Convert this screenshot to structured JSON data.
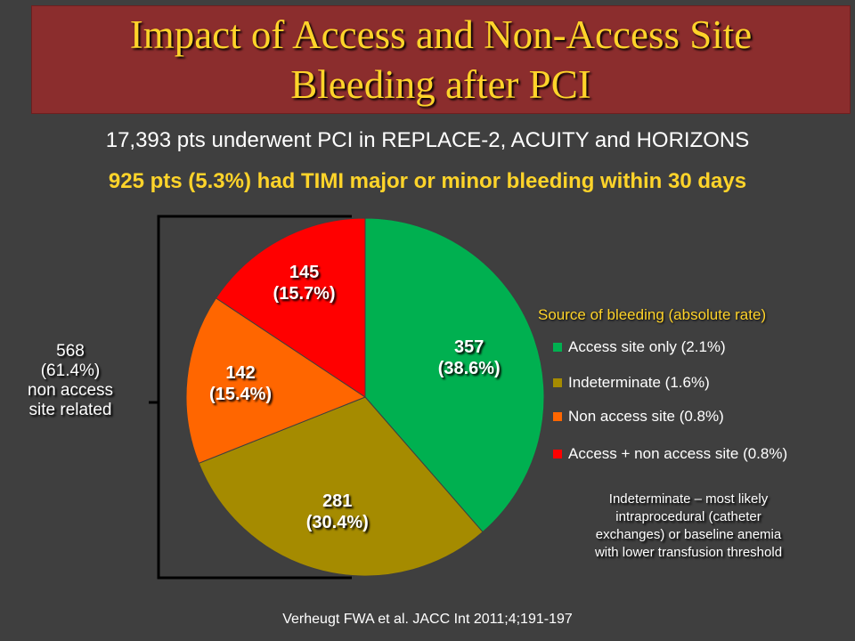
{
  "title": {
    "line1": "Impact of Access and Non-Access Site",
    "line2": "Bleeding after PCI"
  },
  "subtitle": "17,393 pts underwent PCI in REPLACE-2, ACUITY and HORIZONS",
  "highlight": "925 pts (5.3%) had TIMI major or minor bleeding within 30 days",
  "brace_label": [
    "568",
    "(61.4%)",
    "non access",
    "site related"
  ],
  "legend_title": "Source of bleeding (absolute rate)",
  "note": [
    "Indeterminate – most likely",
    "intraprocedural (catheter",
    "exchanges) or baseline anemia",
    "with lower transfusion threshold"
  ],
  "citation": "Verheugt FWA et al. JACC Int 2011;4;191-197",
  "colors": {
    "background": "#3f3f3f",
    "title_bar": "#8b2d2d",
    "title_text": "#ffd42a"
  },
  "chart_data": {
    "type": "pie",
    "slices": [
      {
        "legend": "Access site only (2.1%)",
        "count": "357",
        "pct_label": "(38.6%)",
        "value": 357,
        "percent": 38.6,
        "color": "#00b050"
      },
      {
        "legend": "Indeterminate (1.6%)",
        "count": "281",
        "pct_label": "(30.4%)",
        "value": 281,
        "percent": 30.4,
        "color": "#a58b00"
      },
      {
        "legend": "Non access site (0.8%)",
        "count": "142",
        "pct_label": "(15.4%)",
        "value": 142,
        "percent": 15.4,
        "color": "#ff6600"
      },
      {
        "legend": "Access + non access site (0.8%)",
        "count": "145",
        "pct_label": "(15.7%)",
        "value": 145,
        "percent": 15.7,
        "color": "#ff0000"
      }
    ]
  }
}
